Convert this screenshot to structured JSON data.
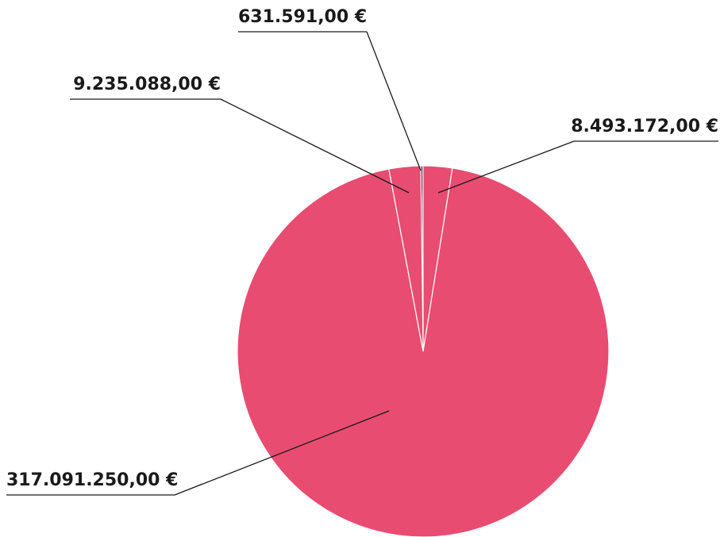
{
  "chart_data": {
    "type": "pie",
    "values": [
      631591,
      8493172,
      317091250,
      9235088
    ],
    "value_labels": [
      "631.591,00 €",
      "8.493.172,00 €",
      "317.091.250,00 €",
      "9.235.088,00 €"
    ],
    "colors": [
      "#5a1846",
      "#e84c71",
      "#e84c71",
      "#e84c71"
    ]
  }
}
